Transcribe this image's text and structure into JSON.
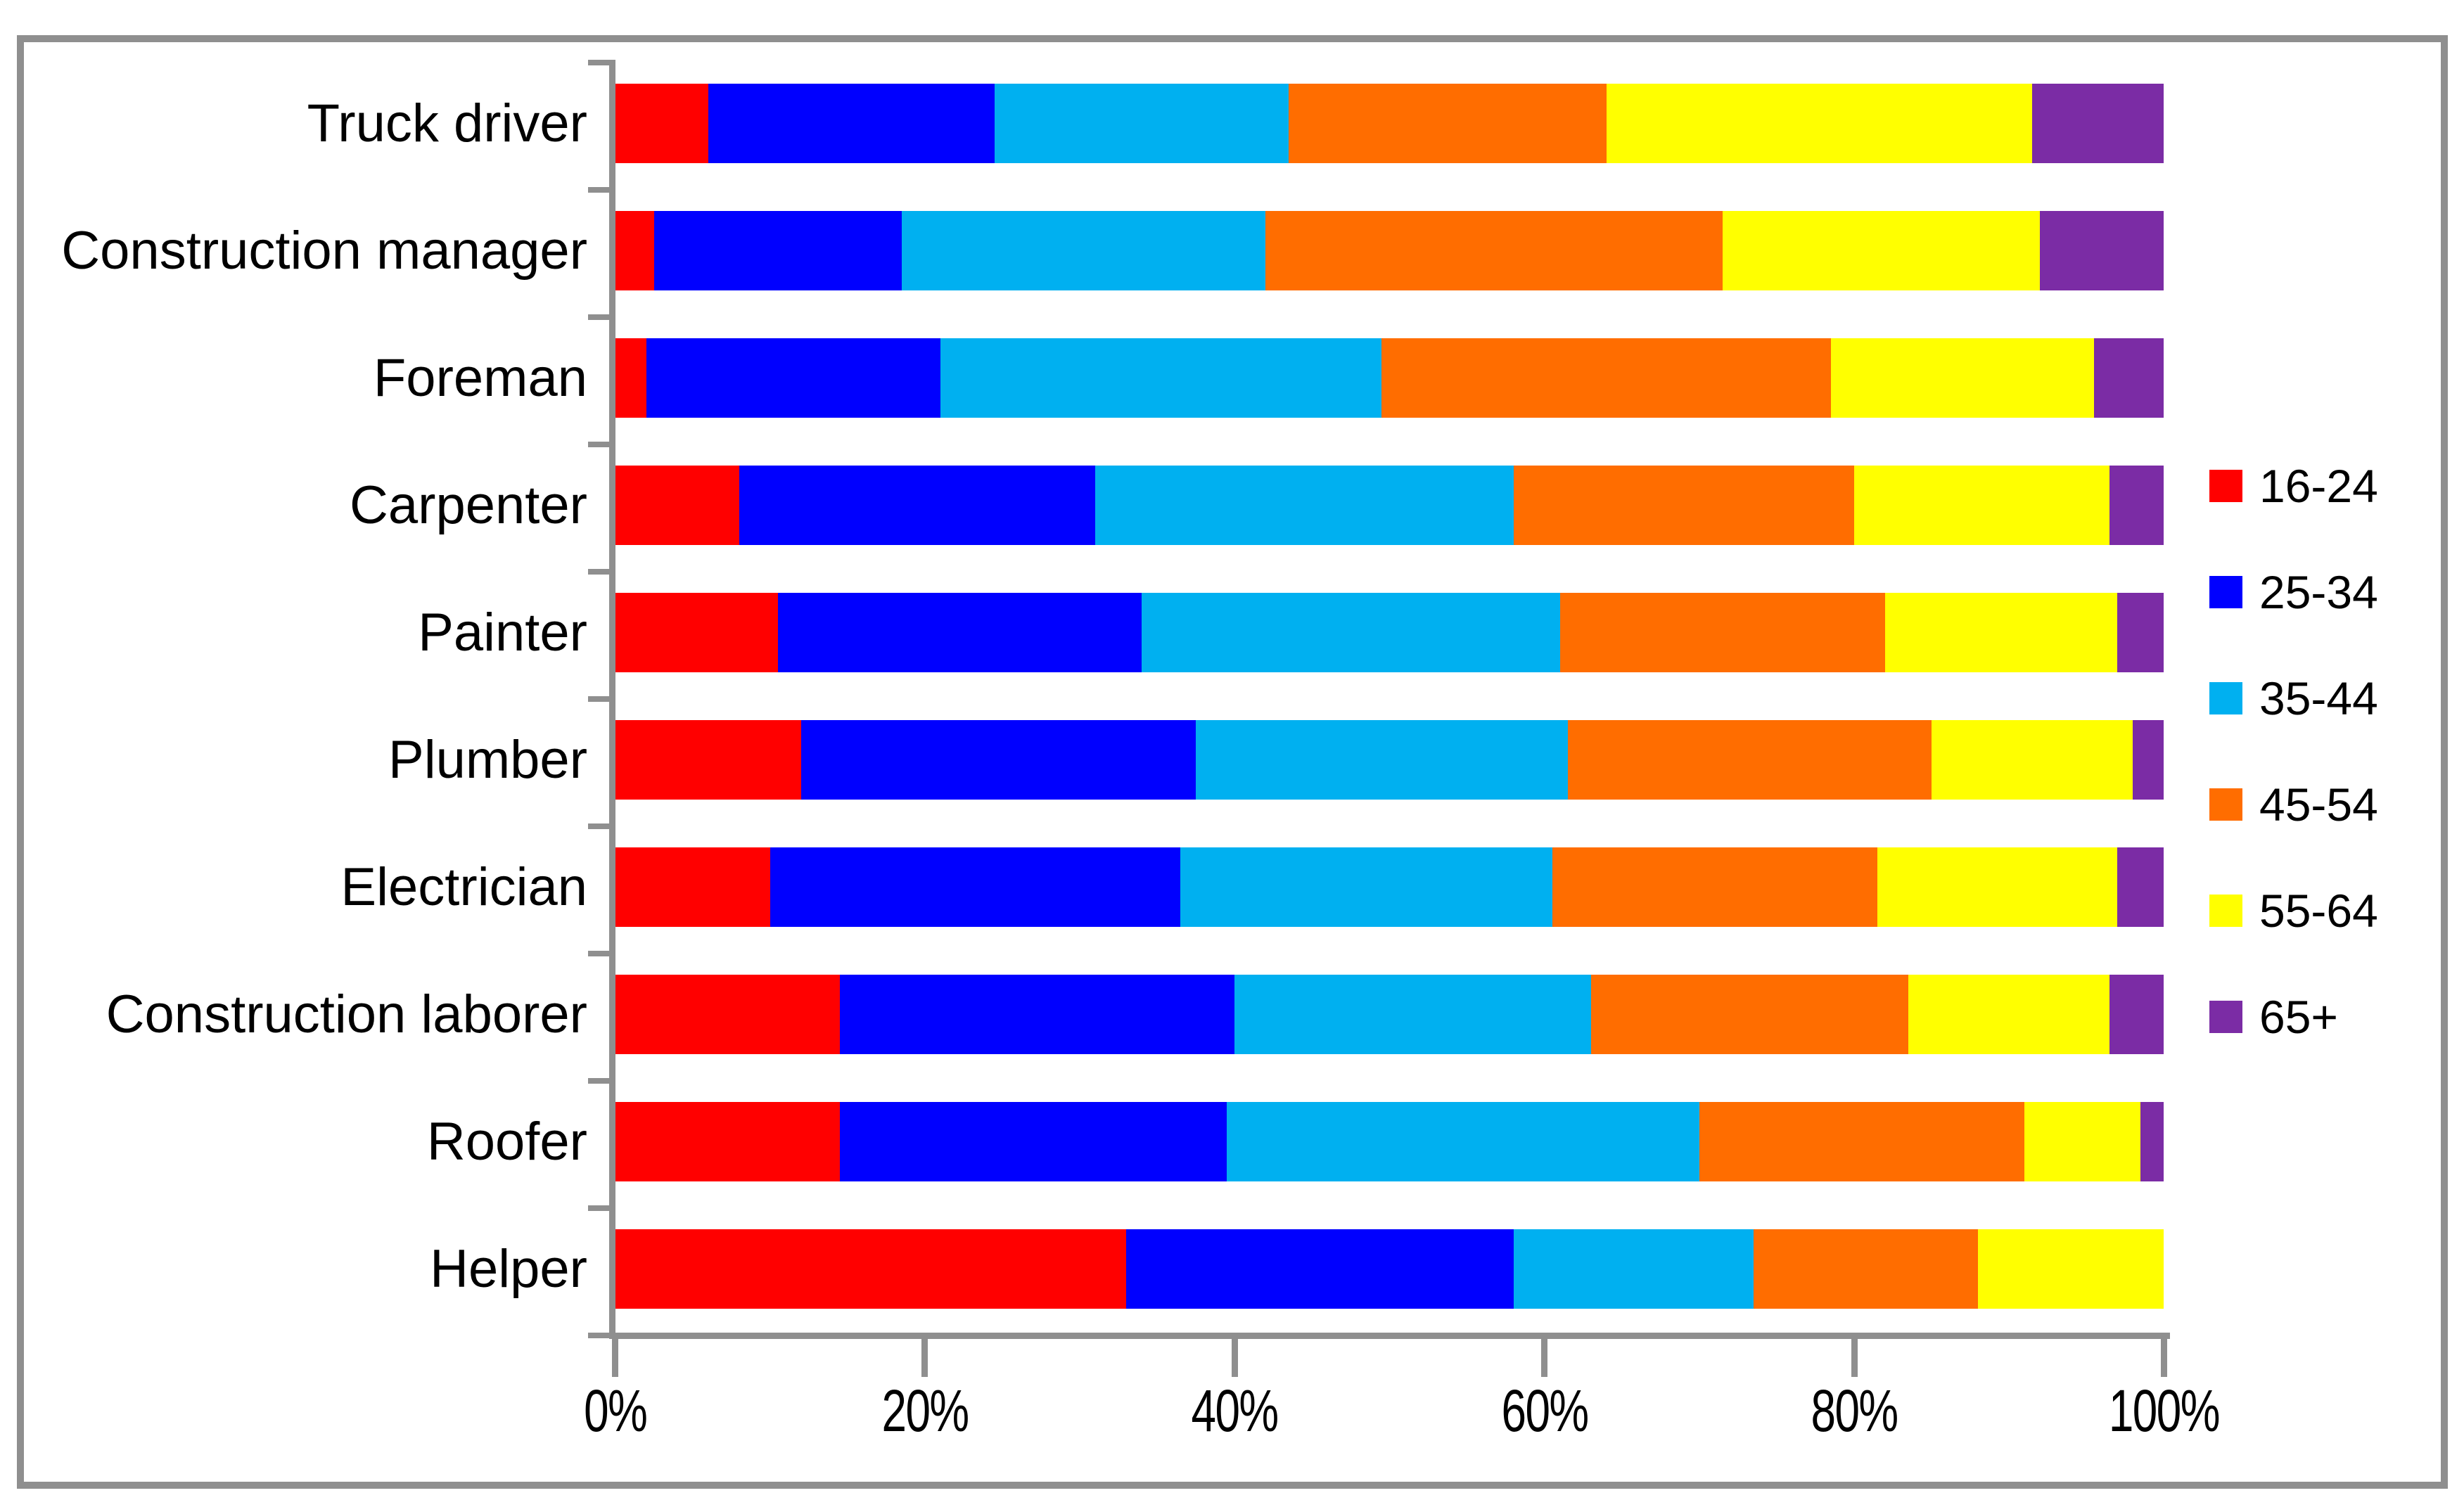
{
  "chart_data": {
    "type": "bar",
    "orientation": "horizontal",
    "stacked": true,
    "unit": "percent",
    "title": "",
    "xlabel": "",
    "ylabel": "",
    "xlim": [
      0,
      100
    ],
    "grid": false,
    "legend_position": "right",
    "categories": [
      "Truck driver",
      "Construction manager",
      "Foreman",
      "Carpenter",
      "Painter",
      "Plumber",
      "Electrician",
      "Construction laborer",
      "Roofer",
      "Helper"
    ],
    "series": [
      {
        "name": "16-24",
        "color": "#FF0000",
        "values": [
          6,
          2.5,
          2,
          8,
          10.5,
          12,
          10,
          14.5,
          14.5,
          33
        ]
      },
      {
        "name": "25-34",
        "color": "#0000FF",
        "values": [
          18.5,
          16,
          19,
          23,
          23.5,
          25.5,
          26.5,
          25.5,
          25,
          25
        ]
      },
      {
        "name": "35-44",
        "color": "#00B0F0",
        "values": [
          19,
          23.5,
          28.5,
          27,
          27,
          24,
          24,
          23,
          30.5,
          15.5
        ]
      },
      {
        "name": "45-54",
        "color": "#FF6D00",
        "values": [
          20.5,
          29.5,
          29,
          22,
          21,
          23.5,
          21,
          20.5,
          21,
          14.5
        ]
      },
      {
        "name": "55-64",
        "color": "#FFFF00",
        "values": [
          27.5,
          20.5,
          17,
          16.5,
          15,
          13,
          15.5,
          13,
          7.5,
          12
        ]
      },
      {
        "name": "65+",
        "color": "#7B2CA5",
        "values": [
          8.5,
          8,
          4.5,
          3.5,
          3,
          2,
          3,
          3.5,
          1.5,
          0
        ]
      }
    ],
    "x_ticks": [
      "0%",
      "20%",
      "40%",
      "60%",
      "80%",
      "100%"
    ]
  },
  "colors": {
    "axis": "#8F8F8F",
    "border": "#8F8F8F",
    "background": "#FFFFFF",
    "text": "#000000"
  }
}
